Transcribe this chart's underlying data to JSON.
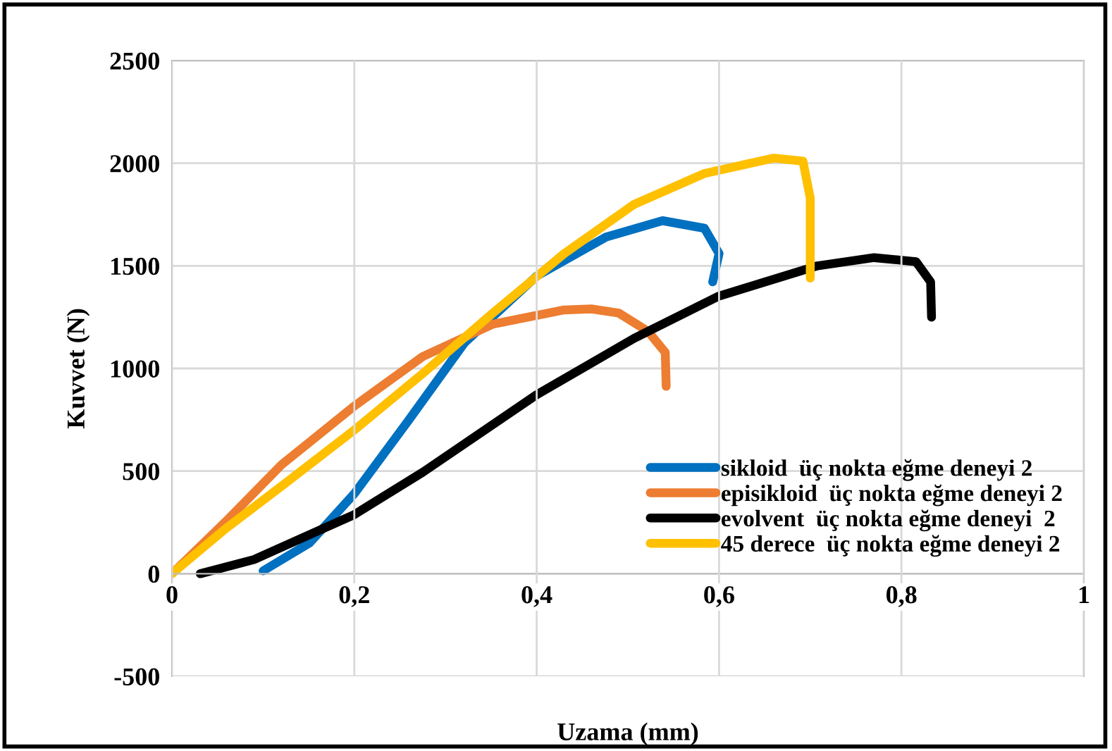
{
  "chart_data": {
    "type": "line",
    "xlabel": "Uzama (mm)",
    "ylabel": "Kuvvet (N)",
    "xlim": [
      0,
      1
    ],
    "xticks": [
      0,
      {
        "value": 0.2,
        "label": "0,2"
      },
      {
        "value": 0.4,
        "label": "0,4"
      },
      {
        "value": 0.6,
        "label": "0,6"
      },
      {
        "value": 0.8,
        "label": "0,8"
      },
      1
    ],
    "ylim": [
      -500,
      2500
    ],
    "yticks": [
      -500,
      0,
      500,
      1000,
      1500,
      2000,
      2500
    ],
    "grid": true,
    "legend": "bottom right",
    "marker": "none",
    "line_style": "solid",
    "series": [
      {
        "name": "sikloid  üç nokta eğme deneyi 2",
        "color": "#0070c0",
        "x": [
          0.1,
          0.151,
          0.2,
          0.26,
          0.321,
          0.4,
          0.476,
          0.538,
          0.584,
          0.6,
          0.593
        ],
        "values": [
          14,
          150,
          390,
          750,
          1126,
          1450,
          1640,
          1720,
          1683,
          1560,
          1422
        ]
      },
      {
        "name": "episikloid  üç nokta eğme deneyi 2",
        "color": "#ed7d31",
        "x": [
          0,
          0.059,
          0.12,
          0.2,
          0.275,
          0.352,
          0.43,
          0.46,
          0.49,
          0.522,
          0.541,
          0.542
        ],
        "values": [
          0,
          254,
          530,
          817,
          1058,
          1216,
          1285,
          1290,
          1270,
          1181,
          1078,
          913
        ]
      },
      {
        "name": "evolvent  üç nokta eğme deneyi  2",
        "color": "#000000",
        "x": [
          0.031,
          0.09,
          0.2,
          0.275,
          0.4,
          0.507,
          0.6,
          0.708,
          0.77,
          0.816,
          0.832,
          0.833
        ],
        "values": [
          0,
          69,
          288,
          494,
          872,
          1147,
          1353,
          1500,
          1540,
          1520,
          1422,
          1250
        ]
      },
      {
        "name": "45 derece  üç nokta eğme deneyi 2",
        "color": "#ffc000",
        "x": [
          0,
          0.059,
          0.12,
          0.2,
          0.275,
          0.352,
          0.43,
          0.507,
          0.584,
          0.66,
          0.692,
          0.7,
          0.7
        ],
        "values": [
          0,
          220,
          426,
          700,
          975,
          1270,
          1559,
          1800,
          1950,
          2025,
          2010,
          1830,
          1440
        ]
      }
    ]
  }
}
